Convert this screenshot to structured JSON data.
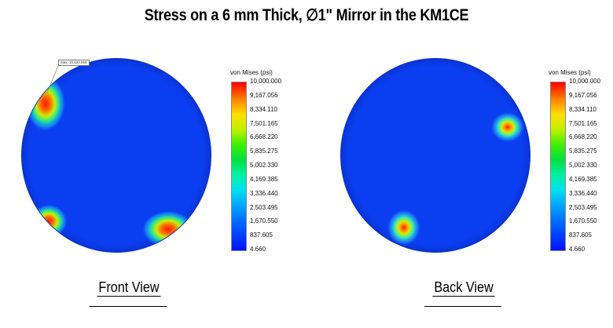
{
  "title": "Stress on a 6 mm Thick, ∅1\" Mirror in the KM1CE",
  "legend": {
    "title": "von Mises (psi)",
    "ticks": [
      "10,000.000",
      "9,167.056",
      "8,334.110",
      "7,501.165",
      "6,668.220",
      "5,835.275",
      "5,002.330",
      "4,169.385",
      "3,336.440",
      "2,503.495",
      "1,670.550",
      "837.605",
      "4.660"
    ],
    "min": 4.66,
    "max": 10000.0
  },
  "front": {
    "label": "Front View",
    "callout": "Max: 10,620.955"
  },
  "back": {
    "label": "Back View"
  },
  "colors": {
    "background_blue": "#0a3ef0",
    "low": "#0010ff",
    "high": "#ff0000"
  }
}
